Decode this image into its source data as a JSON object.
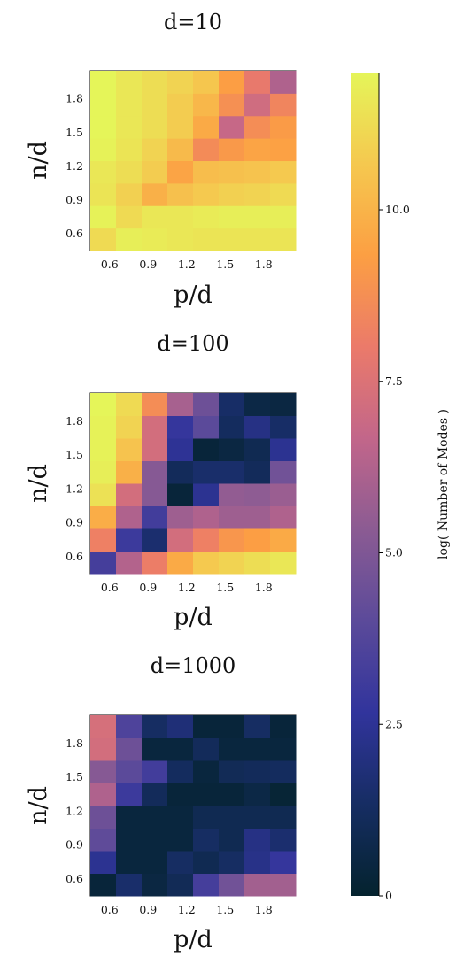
{
  "chart_data": [
    {
      "type": "heatmap",
      "title": "d=10",
      "xlabel": "p/d",
      "ylabel": "n/d",
      "x_ticks": [
        "0.6",
        "0.9",
        "1.2",
        "1.5",
        "1.8"
      ],
      "y_ticks": [
        "0.6",
        "0.9",
        "1.2",
        "1.5",
        "1.8"
      ],
      "values": [
        [
          11.2,
          11.8,
          11.7,
          11.6,
          11.5,
          11.5,
          11.5,
          11.5
        ],
        [
          11.9,
          11.2,
          11.6,
          11.6,
          11.7,
          11.8,
          11.8,
          11.8
        ],
        [
          11.5,
          10.9,
          9.9,
          10.4,
          10.7,
          10.9,
          11.0,
          11.2
        ],
        [
          11.6,
          11.3,
          10.8,
          9.5,
          10.3,
          10.4,
          10.5,
          10.7
        ],
        [
          11.9,
          11.5,
          11.0,
          10.2,
          8.6,
          9.1,
          9.5,
          9.4
        ],
        [
          12.0,
          11.6,
          11.3,
          10.8,
          9.7,
          6.8,
          8.7,
          9.2
        ],
        [
          12.0,
          11.6,
          11.3,
          10.8,
          10.1,
          8.8,
          7.1,
          8.4
        ],
        [
          12.0,
          11.6,
          11.3,
          11.0,
          10.6,
          9.3,
          7.9,
          6.2
        ]
      ]
    },
    {
      "type": "heatmap",
      "title": "d=100",
      "xlabel": "p/d",
      "ylabel": "n/d",
      "x_ticks": [
        "0.6",
        "0.9",
        "1.2",
        "1.5",
        "1.8"
      ],
      "y_ticks": [
        "0.6",
        "0.9",
        "1.2",
        "1.5",
        "1.8"
      ],
      "values": [
        [
          3.3,
          6.3,
          8.1,
          9.7,
          10.7,
          11.0,
          11.3,
          11.6
        ],
        [
          8.2,
          3.0,
          1.6,
          7.2,
          8.2,
          9.0,
          9.3,
          9.7
        ],
        [
          9.8,
          6.2,
          3.2,
          5.8,
          6.2,
          5.8,
          5.8,
          6.2
        ],
        [
          11.4,
          7.2,
          5.2,
          0.3,
          2.4,
          5.5,
          5.4,
          5.7
        ],
        [
          11.8,
          9.9,
          5.2,
          1.1,
          1.5,
          1.5,
          1.1,
          4.6
        ],
        [
          11.9,
          10.5,
          7.2,
          2.5,
          0.3,
          0.5,
          0.9,
          2.4
        ],
        [
          11.9,
          11.0,
          7.2,
          2.8,
          4.0,
          1.2,
          2.1,
          1.4
        ],
        [
          12.0,
          11.2,
          8.7,
          6.0,
          4.5,
          1.4,
          0.6,
          0.5
        ]
      ]
    },
    {
      "type": "heatmap",
      "title": "d=1000",
      "xlabel": "p/d",
      "ylabel": "n/d",
      "x_ticks": [
        "0.6",
        "0.9",
        "1.2",
        "1.5",
        "1.8"
      ],
      "y_ticks": [
        "0.6",
        "0.9",
        "1.2",
        "1.5",
        "1.8"
      ],
      "values": [
        [
          0.3,
          1.5,
          0.5,
          1.0,
          3.3,
          4.6,
          5.9,
          5.9
        ],
        [
          2.4,
          0.4,
          0.4,
          1.3,
          0.9,
          1.3,
          2.2,
          2.8
        ],
        [
          4.1,
          0.4,
          0.4,
          0.4,
          1.3,
          0.9,
          2.1,
          1.6
        ],
        [
          4.5,
          0.4,
          0.4,
          0.4,
          0.9,
          0.9,
          0.9,
          0.9
        ],
        [
          6.2,
          3.0,
          1.1,
          0.3,
          0.3,
          0.3,
          0.6,
          0.2
        ],
        [
          5.2,
          4.0,
          3.2,
          1.2,
          0.4,
          1.0,
          1.1,
          1.2
        ],
        [
          7.2,
          4.5,
          0.4,
          0.4,
          1.1,
          0.4,
          0.4,
          0.4
        ],
        [
          7.3,
          3.6,
          1.3,
          1.8,
          0.3,
          0.3,
          1.3,
          0.3
        ]
      ]
    }
  ],
  "colorbar": {
    "label": "log( Number of Modes )",
    "min": 0,
    "max": 12,
    "ticks": [
      {
        "value": 0,
        "label": "0"
      },
      {
        "value": 2.5,
        "label": "2.5"
      },
      {
        "value": 5,
        "label": "5.0"
      },
      {
        "value": 7.5,
        "label": "7.5"
      },
      {
        "value": 10,
        "label": "10.0"
      }
    ],
    "colormap": "thermal",
    "stops": [
      "#04232e",
      "#162d63",
      "#31349c",
      "#5b4a9a",
      "#8b5b93",
      "#c2668a",
      "#eb7a6a",
      "#fc9f43",
      "#f5c84f",
      "#e5f559"
    ]
  }
}
